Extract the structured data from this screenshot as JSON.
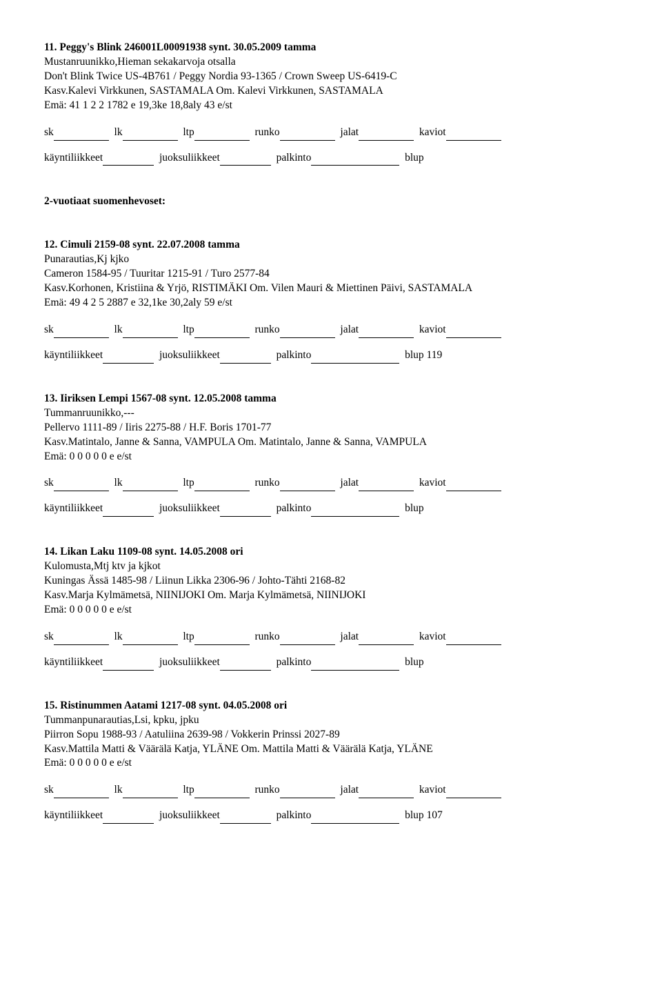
{
  "entries": [
    {
      "number": "11.",
      "title": "Peggy's Blink 246001L00091938 synt. 30.05.2009 tamma",
      "color_desc": "Mustanruunikko,Hieman sekakarvoja otsalla",
      "pedigree": "Don't Blink Twice US-4B761 / Peggy Nordia 93-1365 / Crown Sweep US-6419-C",
      "breeder": "Kasv.Kalevi Virkkunen, SASTAMALA Om. Kalevi Virkkunen, SASTAMALA",
      "dam": "Emä: 41 1 2 2 1782 e 19,3ke 18,8aly 43 e/st",
      "blup_suffix": ""
    }
  ],
  "section_heading": "2-vuotiaat suomenhevoset:",
  "entries2": [
    {
      "number": "12.",
      "title": "Cimuli 2159-08 synt. 22.07.2008 tamma",
      "color_desc": "Punarautias,Kj kjko",
      "pedigree": "Cameron 1584-95 / Tuuritar 1215-91 / Turo 2577-84",
      "breeder": "Kasv.Korhonen, Kristiina & Yrjö, RISTIMÄKI Om. Vilen Mauri & Miettinen Päivi, SASTAMALA",
      "dam": "Emä: 49 4 2 5 2887 e 32,1ke 30,2aly 59 e/st",
      "blup_suffix": " 119"
    },
    {
      "number": "13.",
      "title": "Iiriksen Lempi 1567-08 synt. 12.05.2008 tamma",
      "color_desc": "Tummanruunikko,---",
      "pedigree": "Pellervo 1111-89 / Iiris 2275-88 / H.F. Boris 1701-77",
      "breeder": "Kasv.Matintalo, Janne & Sanna, VAMPULA Om. Matintalo, Janne & Sanna, VAMPULA",
      "dam": "Emä: 0 0 0 0 0 e e/st",
      "blup_suffix": ""
    },
    {
      "number": "14.",
      "title": "Likan Laku 1109-08 synt. 14.05.2008 ori",
      "color_desc": "Kulomusta,Mtj ktv ja kjkot",
      "pedigree": "Kuningas Ässä 1485-98 / Liinun Likka 2306-96 / Johto-Tähti 2168-82",
      "breeder": "Kasv.Marja Kylmämetsä, NIINIJOKI Om. Marja Kylmämetsä, NIINIJOKI",
      "dam": "Emä: 0 0 0 0 0 e e/st",
      "blup_suffix": ""
    },
    {
      "number": "15.",
      "title": "Ristinummen Aatami 1217-08 synt. 04.05.2008 ori",
      "color_desc": "Tummanpunarautias,Lsi, kpku, jpku",
      "pedigree": "Piirron Sopu 1988-93 / Aatuliina 2639-98 / Vokkerin Prinssi 2027-89",
      "breeder": "Kasv.Mattila Matti & Väärälä Katja, YLÄNE Om. Mattila Matti & Väärälä Katja, YLÄNE",
      "dam": "Emä: 0 0 0 0 0 e e/st",
      "blup_suffix": " 107"
    }
  ],
  "row1_labels": {
    "sk": "sk",
    "lk": "lk",
    "ltp": "ltp",
    "runko": "runko",
    "jalat": "jalat",
    "kaviot": "kaviot"
  },
  "row2_labels": {
    "a": "käyntiliikkeet",
    "b": "juoksuliikkeet",
    "c": "palkinto",
    "d": "blup"
  }
}
